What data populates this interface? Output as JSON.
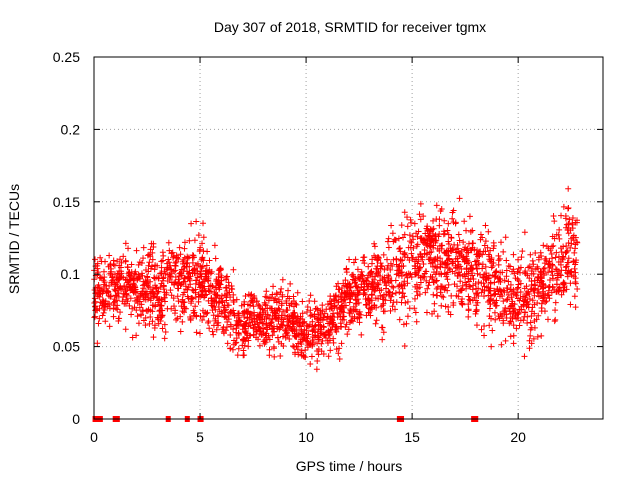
{
  "chart_data": {
    "type": "scatter",
    "title": "Day 307 of 2018, SRMTID for receiver tgmx",
    "xlabel": "GPS time / hours",
    "ylabel": "SRMTID / TECUs",
    "xlim": [
      0,
      24
    ],
    "ylim": [
      0,
      0.25
    ],
    "x_ticks": [
      0,
      5,
      10,
      15,
      20
    ],
    "x_tick_labels": [
      "0",
      "5",
      "10",
      "15",
      "20"
    ],
    "y_ticks": [
      0,
      0.05,
      0.1,
      0.15,
      0.2,
      0.25
    ],
    "y_tick_labels": [
      "0",
      "0.05",
      "0.1",
      "0.15",
      "0.2",
      "0.25"
    ],
    "grid": true,
    "marker": "plus",
    "color": "#ff0000",
    "trend": {
      "x": [
        0,
        1,
        2,
        3,
        4,
        5,
        6,
        7,
        8,
        9,
        10,
        11,
        12,
        13,
        14,
        15,
        16,
        17,
        18,
        19,
        20,
        21,
        22,
        22.8
      ],
      "y": [
        0.085,
        0.092,
        0.09,
        0.085,
        0.095,
        0.095,
        0.08,
        0.065,
        0.068,
        0.07,
        0.06,
        0.065,
        0.085,
        0.09,
        0.095,
        0.105,
        0.11,
        0.11,
        0.1,
        0.09,
        0.085,
        0.09,
        0.11,
        0.12
      ],
      "spread": [
        0.03,
        0.03,
        0.03,
        0.035,
        0.035,
        0.035,
        0.03,
        0.025,
        0.025,
        0.025,
        0.025,
        0.025,
        0.03,
        0.03,
        0.035,
        0.04,
        0.04,
        0.04,
        0.035,
        0.035,
        0.035,
        0.035,
        0.04,
        0.045
      ],
      "n_points": 2600
    },
    "zero_points_x": [
      0.05,
      0.1,
      0.25,
      0.3,
      1.0,
      1.1,
      3.5,
      4.4,
      5.0,
      5.05,
      14.4,
      14.5,
      17.9,
      18.0
    ]
  }
}
